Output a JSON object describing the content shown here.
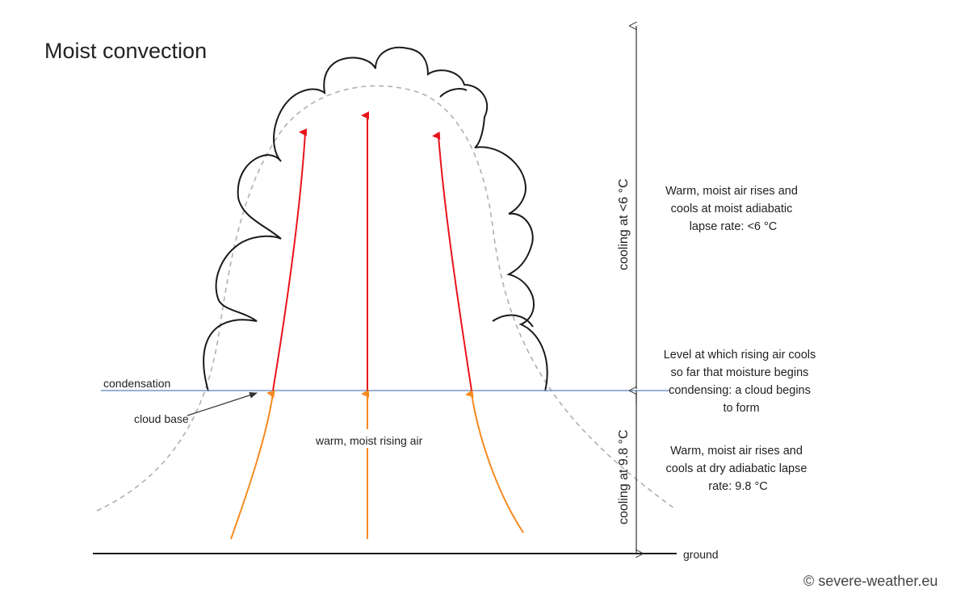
{
  "title": "Moist convection",
  "labels": {
    "condensation": "condensation",
    "cloud_base": "cloud base",
    "rising_air": "warm, moist rising air",
    "ground": "ground",
    "cooling_upper": "cooling at <6 °C",
    "cooling_lower": "cooling at 9.8 °C"
  },
  "notes": {
    "moist": [
      "Warm, moist air rises and",
      "cools at moist adiabatic",
      "lapse rate: <6 °C"
    ],
    "condensation_level": [
      "Level at which rising air cools",
      "so far that moisture begins",
      "condensing: a cloud begins",
      "to form"
    ],
    "dry": [
      "Warm, moist air rises and",
      "cools at dry adiabatic lapse",
      "rate: 9.8 °C"
    ]
  },
  "credit": "© severe-weather.eu",
  "colors": {
    "condensation_line": "#7a96c8",
    "rising_above_base": "#e8141b",
    "rising_below_base": "#f58a1f",
    "cloud_outline": "#1a1a1a",
    "dashed_envelope": "#b0b0b0"
  }
}
